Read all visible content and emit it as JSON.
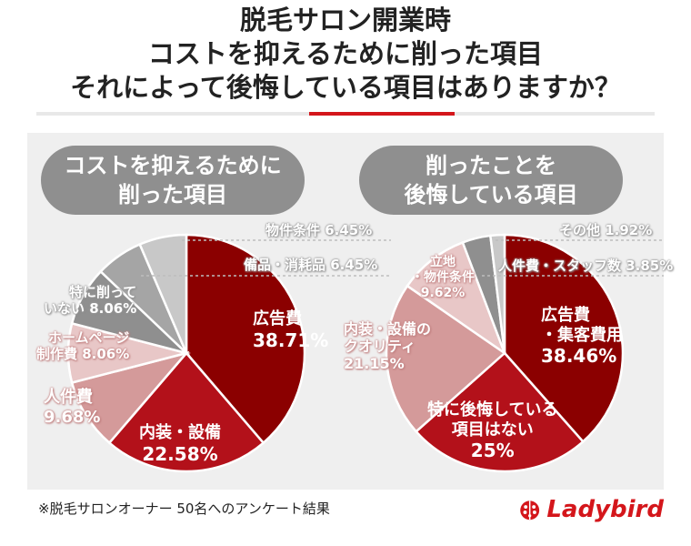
{
  "title": {
    "line1": "脱毛サロン開業時",
    "line2": "コストを抑えるために削った項目",
    "line3": "それによって後悔している項目はありますか？"
  },
  "pill_left": {
    "line1": "コストを抑えるために",
    "line2": "削った項目"
  },
  "pill_right": {
    "line1": "削ったことを",
    "line2": "後悔している項目"
  },
  "colors": {
    "accent_red": "#d4161b",
    "dark_red": "#8b0000",
    "red": "#b3111a",
    "pink": "#d49a9a",
    "light_pink": "#e8c7c7",
    "gray": "#8f8f8f",
    "mid_gray": "#a5a5a5",
    "light_gray": "#c8c8c8"
  },
  "chart_data": [
    {
      "type": "pie",
      "title": "コストを抑えるために削った項目",
      "slices": [
        {
          "label": "広告費",
          "value": 38.71,
          "display": "38.71%",
          "color": "#8b0000"
        },
        {
          "label": "内装・設備",
          "value": 22.58,
          "display": "22.58%",
          "color": "#b3111a"
        },
        {
          "label": "人件費",
          "value": 9.68,
          "display": "9.68%",
          "color": "#d49a9a"
        },
        {
          "label": "ホームページ制作費",
          "value": 8.06,
          "display": "8.06%",
          "color": "#e8c7c7"
        },
        {
          "label": "特に削っていない",
          "value": 8.06,
          "display": "8.06%",
          "color": "#8f8f8f"
        },
        {
          "label": "備品・消耗品",
          "value": 6.45,
          "display": "6.45%",
          "color": "#a5a5a5"
        },
        {
          "label": "物件条件",
          "value": 6.45,
          "display": "6.45%",
          "color": "#c8c8c8"
        }
      ]
    },
    {
      "type": "pie",
      "title": "削ったことを後悔している項目",
      "slices": [
        {
          "label": "広告費・集客費用",
          "value": 38.46,
          "display": "38.46%",
          "color": "#8b0000"
        },
        {
          "label": "特に後悔している項目はない",
          "value": 25,
          "display": "25%",
          "color": "#b3111a"
        },
        {
          "label": "内装・設備のクオリティ",
          "value": 21.15,
          "display": "21.15%",
          "color": "#d49a9a"
        },
        {
          "label": "立地・物件条件",
          "value": 9.62,
          "display": "9.62%",
          "color": "#e8c7c7"
        },
        {
          "label": "人件費・スタッフ数",
          "value": 3.85,
          "display": "3.85%",
          "color": "#8f8f8f"
        },
        {
          "label": "その他",
          "value": 1.92,
          "display": "1.92%",
          "color": "#c8c8c8"
        }
      ]
    }
  ],
  "labels_left": {
    "s0": {
      "a": "広告費",
      "b": "38.71%"
    },
    "s1": {
      "a": "内装・設備",
      "b": "22.58%"
    },
    "s2": {
      "a": "人件費",
      "b": "9.68%"
    },
    "s3": {
      "a": "ホームページ",
      "b": "制作費 8.06%"
    },
    "s4": {
      "a": "特に削って",
      "b": "いない 8.06%"
    },
    "s5": {
      "a": "備品・消耗品 6.45%"
    },
    "s6": {
      "a": "物件条件 6.45%"
    }
  },
  "labels_right": {
    "s0": {
      "a": "広告費",
      "b": "・集客費用",
      "c": "38.46%"
    },
    "s1": {
      "a": "特に後悔している",
      "b": "項目はない",
      "c": "25%"
    },
    "s2": {
      "a": "内装・設備の",
      "b": "クオリティ",
      "c": "21.15%"
    },
    "s3": {
      "a": "立地",
      "b": "・物件条件",
      "c": "9.62%"
    },
    "s4": {
      "a": "人件費・スタッフ数 3.85%"
    },
    "s5": {
      "a": "その他 1.92%"
    }
  },
  "footnote": "※脱毛サロンオーナー 50名へのアンケート結果",
  "logo": {
    "text": "Ladybird",
    "icon": "ladybug-icon"
  }
}
